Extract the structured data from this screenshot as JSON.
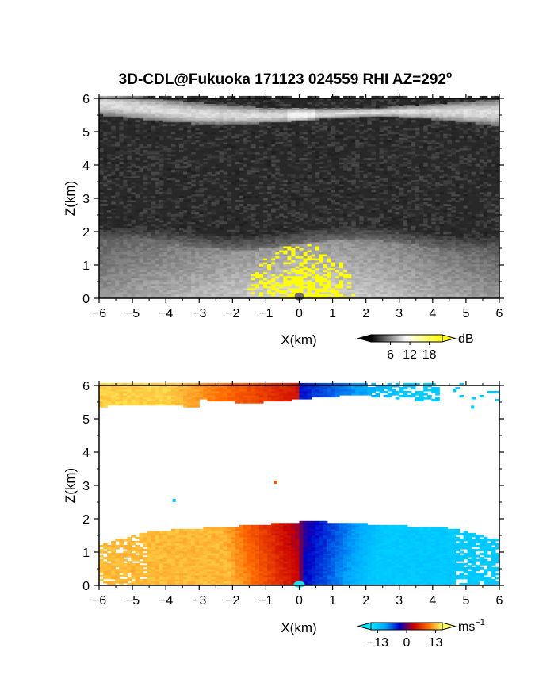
{
  "title": "3D-CDL@Fukuoka 171123 024559 RHI AZ=292",
  "title_superscript": "o",
  "chart_data": [
    {
      "type": "heatmap",
      "quantity": "backscatter intensity",
      "xlabel": "X(km)",
      "ylabel": "Z(km)",
      "xlim": [
        -6,
        6
      ],
      "ylim": [
        0,
        6
      ],
      "xticks": [
        "-6",
        "-5",
        "-4",
        "-3",
        "-2",
        "-1",
        "0",
        "1",
        "2",
        "3",
        "4",
        "5",
        "6"
      ],
      "yticks": [
        "0",
        "1",
        "2",
        "3",
        "4",
        "5",
        "6"
      ],
      "colorbar": {
        "unit": "dB",
        "ticks": [
          "6",
          "12",
          "18"
        ],
        "tick_values": [
          6,
          12,
          18
        ],
        "range": [
          0,
          22
        ],
        "colors": [
          "#000000",
          "#ffffff",
          "#ffff00"
        ]
      },
      "features": {
        "aerosol_layer_top_km": 1.6,
        "cloud_layer_km": [
          5.3,
          5.9
        ],
        "saturation_color": "#ffff00"
      }
    },
    {
      "type": "heatmap",
      "quantity": "radial velocity",
      "xlabel": "X(km)",
      "ylabel": "Z(km)",
      "xlim": [
        -6,
        6
      ],
      "ylim": [
        0,
        6
      ],
      "xticks": [
        "-6",
        "-5",
        "-4",
        "-3",
        "-2",
        "-1",
        "0",
        "1",
        "2",
        "3",
        "4",
        "5",
        "6"
      ],
      "yticks": [
        "0",
        "1",
        "2",
        "3",
        "4",
        "5",
        "6"
      ],
      "colorbar": {
        "unit": "ms",
        "unit_superscript": "−1",
        "ticks": [
          "−13",
          "0",
          "13"
        ],
        "tick_values": [
          -13,
          0,
          13
        ],
        "range": [
          -16,
          16
        ],
        "colors": [
          "#00e6ff",
          "#00a8ff",
          "#0000c8",
          "#c80000",
          "#ff6a00",
          "#ffff66"
        ]
      },
      "features": {
        "aerosol_layer_top_km": 1.8,
        "cloud_layer_km": [
          5.3,
          6.0
        ]
      }
    }
  ]
}
